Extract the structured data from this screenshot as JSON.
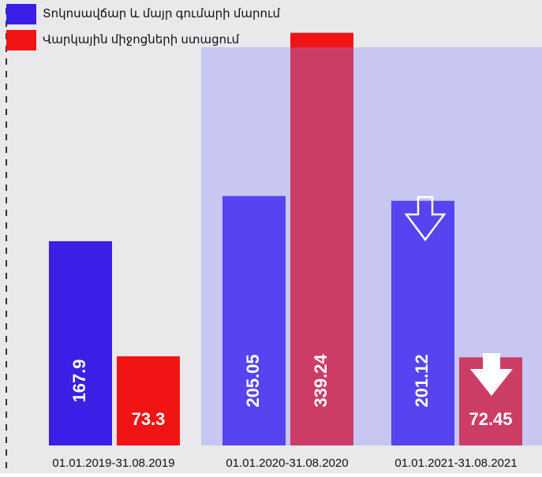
{
  "chart_data": {
    "type": "bar",
    "categories": [
      "01.01.2019-31.08.2019",
      "01.01.2020-31.08.2020",
      "01.01.2021-31.08.2021"
    ],
    "series": [
      {
        "name": "Տոկոսավճար և մայր գումարի մարում",
        "color": "#3a1fe6",
        "values": [
          167.9,
          205.05,
          201.12
        ]
      },
      {
        "name": "Վարկային միջոցների ստացում",
        "color": "#f01414",
        "values": [
          73.3,
          339.24,
          72.45
        ]
      }
    ],
    "ylim": [
      0,
      350
    ],
    "legend": "top-left"
  }
}
